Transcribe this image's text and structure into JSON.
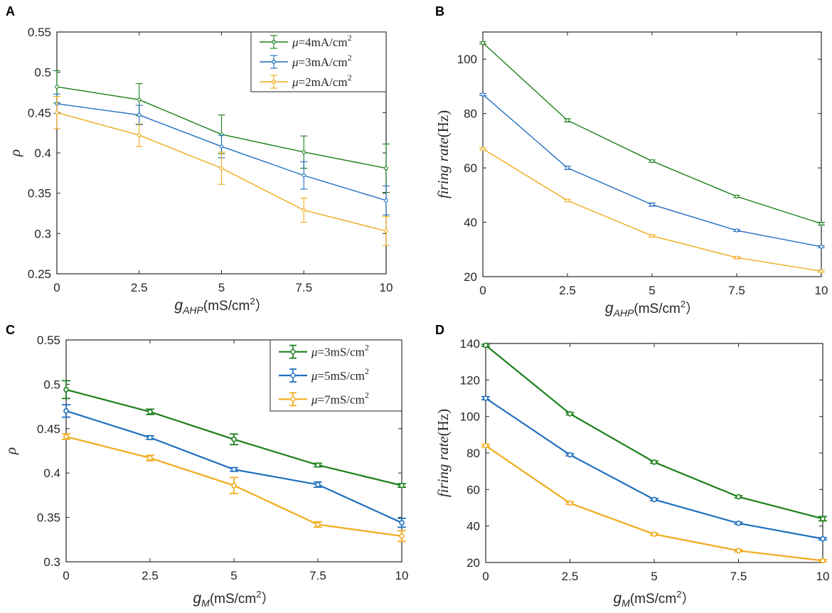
{
  "chart_data": [
    {
      "id": "A",
      "type": "line",
      "panel_label": "A",
      "title": "",
      "ylabel": "ρ",
      "xlabel_main": "g",
      "xlabel_sub": "AHP",
      "xlabel_unit": "(mS/cm",
      "xlabel_sup": "2",
      "xlabel_close": "）",
      "ylabel_parts": null,
      "xlim": [
        0,
        10
      ],
      "ylim": [
        0.25,
        0.55
      ],
      "x_ticks": [
        0,
        2.5,
        5,
        7.5,
        10
      ],
      "x_tick_labels": [
        "0",
        "2.5",
        "5",
        "7.5",
        "10"
      ],
      "y_ticks": [
        0.25,
        0.3,
        0.35,
        0.4,
        0.45,
        0.5,
        0.55
      ],
      "y_tick_labels": [
        "0.25",
        "0.3",
        "0.35",
        "0.4",
        "0.45",
        "0.5",
        "0.55"
      ],
      "legend_position": "top-right",
      "style": "thin",
      "x": [
        0,
        2.5,
        5,
        7.5,
        10
      ],
      "series": [
        {
          "name_prefix": "μ",
          "name_main": "=4mA/cm",
          "name_sup": "2",
          "color": "#1a7f1a",
          "values": [
            0.482,
            0.466,
            0.423,
            0.401,
            0.381
          ],
          "errors": [
            0.02,
            0.02,
            0.024,
            0.02,
            0.03
          ]
        },
        {
          "name_prefix": "μ",
          "name_main": "=3mA/cm",
          "name_sup": "2",
          "color": "#1f6fbf",
          "values": [
            0.461,
            0.447,
            0.408,
            0.372,
            0.341
          ],
          "errors": [
            0.012,
            0.012,
            0.014,
            0.017,
            0.018
          ]
        },
        {
          "name_prefix": "μ",
          "name_main": "=2mA/cm",
          "name_sup": "2",
          "color": "#f0ab1c",
          "values": [
            0.45,
            0.422,
            0.381,
            0.329,
            0.303
          ],
          "errors": [
            0.02,
            0.014,
            0.02,
            0.015,
            0.018
          ]
        }
      ]
    },
    {
      "id": "B",
      "type": "line",
      "panel_label": "B",
      "title": "",
      "ylabel": "",
      "ylabel_parts": {
        "italic": "firing rate",
        "normal": "(Hz)"
      },
      "xlabel_main": "g",
      "xlabel_sub": "AHP",
      "xlabel_unit": "(mS/cm",
      "xlabel_sup": "2",
      "xlabel_close": "）",
      "xlim": [
        0,
        10
      ],
      "ylim": [
        20,
        110
      ],
      "x_ticks": [
        0,
        2.5,
        5,
        7.5,
        10
      ],
      "x_tick_labels": [
        "0",
        "2.5",
        "5",
        "7.5",
        "10"
      ],
      "y_ticks": [
        20,
        40,
        60,
        80,
        100
      ],
      "y_tick_labels": [
        "20",
        "40",
        "60",
        "80",
        "100"
      ],
      "legend_position": "none",
      "style": "thin",
      "x": [
        0,
        2.5,
        5,
        7.5,
        10
      ],
      "series": [
        {
          "name_prefix": "",
          "name_main": "",
          "name_sup": "",
          "color": "#1a7f1a",
          "values": [
            106,
            77.5,
            62.5,
            49.5,
            39.5
          ],
          "errors": [
            0.4,
            0.6,
            0.4,
            0.4,
            0.5
          ]
        },
        {
          "name_prefix": "",
          "name_main": "",
          "name_sup": "",
          "color": "#1f6fbf",
          "values": [
            87,
            60,
            46.5,
            37,
            31
          ],
          "errors": [
            0.4,
            0.6,
            0.6,
            0.4,
            0.4
          ]
        },
        {
          "name_prefix": "",
          "name_main": "",
          "name_sup": "",
          "color": "#f0ab1c",
          "values": [
            67,
            48,
            35,
            27,
            22
          ],
          "errors": [
            0.4,
            0.4,
            0.4,
            0.4,
            0.4
          ]
        }
      ]
    },
    {
      "id": "C",
      "type": "line",
      "panel_label": "C",
      "title": "",
      "ylabel": "ρ",
      "ylabel_parts": null,
      "xlabel_main": "g",
      "xlabel_sub": "M",
      "xlabel_unit": "(mS/cm",
      "xlabel_sup": "2",
      "xlabel_close": "）",
      "xlim": [
        0,
        10
      ],
      "ylim": [
        0.3,
        0.55
      ],
      "x_ticks": [
        0,
        2.5,
        5,
        7.5,
        10
      ],
      "x_tick_labels": [
        "0",
        "2.5",
        "5",
        "7.5",
        "10"
      ],
      "y_ticks": [
        0.3,
        0.35,
        0.4,
        0.45,
        0.5,
        0.55
      ],
      "y_tick_labels": [
        "0.3",
        "0.35",
        "0.4",
        "0.45",
        "0.5",
        "0.55"
      ],
      "legend_position": "top-right",
      "style": "thick",
      "x": [
        0,
        2.5,
        5,
        7.5,
        10
      ],
      "series": [
        {
          "name_prefix": "μ",
          "name_main": "=3mS/cm",
          "name_sup": "2",
          "color": "#1a7f1a",
          "values": [
            0.494,
            0.469,
            0.438,
            0.409,
            0.386
          ],
          "errors": [
            0.01,
            0.003,
            0.006,
            0.002,
            0.002
          ]
        },
        {
          "name_prefix": "μ",
          "name_main": "=5mS/cm",
          "name_sup": "2",
          "color": "#1f6fbf",
          "values": [
            0.47,
            0.44,
            0.404,
            0.387,
            0.344
          ],
          "errors": [
            0.007,
            0.002,
            0.002,
            0.003,
            0.005
          ]
        },
        {
          "name_prefix": "μ",
          "name_main": "=7mS/cm",
          "name_sup": "2",
          "color": "#f0ab1c",
          "values": [
            0.441,
            0.417,
            0.386,
            0.342,
            0.329
          ],
          "errors": [
            0.003,
            0.003,
            0.009,
            0.003,
            0.006
          ]
        }
      ]
    },
    {
      "id": "D",
      "type": "line",
      "panel_label": "D",
      "title": "",
      "ylabel": "",
      "ylabel_parts": {
        "italic": "firing rate",
        "normal": "(Hz)"
      },
      "xlabel_main": "g",
      "xlabel_sub": "M",
      "xlabel_unit": "(mS/cm",
      "xlabel_sup": "2",
      "xlabel_close": "）",
      "xlim": [
        0,
        10
      ],
      "ylim": [
        20,
        140
      ],
      "x_ticks": [
        0,
        2.5,
        5,
        7.5,
        10
      ],
      "x_tick_labels": [
        "0",
        "2.5",
        "5",
        "7.5",
        "10"
      ],
      "y_ticks": [
        20,
        40,
        60,
        80,
        100,
        120,
        140
      ],
      "y_tick_labels": [
        "20",
        "40",
        "60",
        "80",
        "100",
        "120",
        "140"
      ],
      "legend_position": "none",
      "style": "thick",
      "x": [
        0,
        2.5,
        5,
        7.5,
        10
      ],
      "series": [
        {
          "name_prefix": "",
          "name_main": "",
          "name_sup": "",
          "color": "#1a7f1a",
          "values": [
            139,
            101.5,
            75,
            56,
            44
          ],
          "errors": [
            0.6,
            0.6,
            0.6,
            0.6,
            1.2
          ]
        },
        {
          "name_prefix": "",
          "name_main": "",
          "name_sup": "",
          "color": "#1f6fbf",
          "values": [
            110,
            79,
            54.5,
            41.5,
            33
          ],
          "errors": [
            0.8,
            0.6,
            0.6,
            0.6,
            0.6
          ]
        },
        {
          "name_prefix": "",
          "name_main": "",
          "name_sup": "",
          "color": "#f0ab1c",
          "values": [
            84,
            52.5,
            35.5,
            26.5,
            21
          ],
          "errors": [
            0.6,
            0.6,
            0.6,
            0.6,
            0.6
          ]
        }
      ]
    }
  ]
}
